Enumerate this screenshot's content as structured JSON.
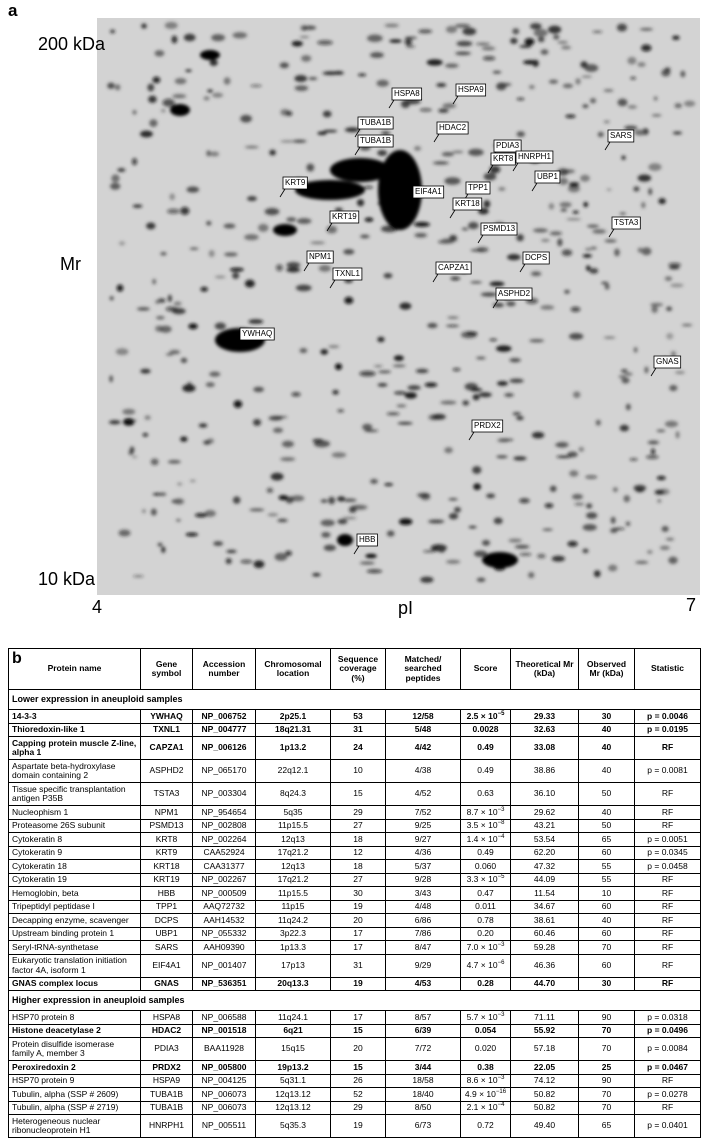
{
  "panel_a": {
    "label": "a",
    "y_top": "200 kDa",
    "y_axis": "Mr",
    "y_bottom": "10 kDa",
    "x_left": "4",
    "x_axis": "pI",
    "x_right": "7",
    "spot_labels": [
      "HSPA8",
      "HSPA9",
      "TUBA1B",
      "TUBA1B",
      "HDAC2",
      "PDIA3",
      "HNRPH1",
      "KRT8",
      "SARS",
      "TPP1",
      "UBP1",
      "KRT9",
      "EIF4A1",
      "KRT18",
      "KRT19",
      "TSTA3",
      "PSMD13",
      "NPM1",
      "DCPS",
      "TXNL1",
      "CAPZA1",
      "ASPHD2",
      "YWHAQ",
      "GNAS",
      "PRDX2",
      "HBB"
    ]
  },
  "panel_b": {
    "label": "b",
    "columns": [
      "Protein name",
      "Gene symbol",
      "Accession number",
      "Chromosomal location",
      "Sequence coverage (%)",
      "Matched/ searched peptides",
      "Score",
      "Theoretical Mr (kDa)",
      "Observed Mr (kDa)",
      "Statistic"
    ],
    "sections": [
      {
        "title": "Lower expression in aneuploid samples",
        "rows": [
          {
            "bold": true,
            "cells": [
              "14-3-3",
              "YWHAQ",
              "NP_006752",
              "2p25.1",
              "53",
              "12/58",
              {
                "text": "2.5 × 10",
                "sup": "−5"
              },
              "29.33",
              "30",
              "p = 0.0046"
            ]
          },
          {
            "bold": true,
            "cells": [
              "Thioredoxin-like 1",
              "TXNL1",
              "NP_004777",
              "18q21.31",
              "31",
              "5/48",
              "0.0028",
              "32.63",
              "40",
              "p = 0.0195"
            ]
          },
          {
            "bold": true,
            "cells": [
              "Capping protein muscle Z-line, alpha 1",
              "CAPZA1",
              "NP_006126",
              "1p13.2",
              "24",
              "4/42",
              "0.49",
              "33.08",
              "40",
              "RF"
            ]
          },
          {
            "bold": false,
            "cells": [
              "Aspartate beta-hydroxylase domain containing 2",
              "ASPHD2",
              "NP_065170",
              "22q12.1",
              "10",
              "4/38",
              "0.49",
              "38.86",
              "40",
              "p = 0.0081"
            ]
          },
          {
            "bold": false,
            "cells": [
              "Tissue specific transplantation antigen P35B",
              "TSTA3",
              "NP_003304",
              "8q24.3",
              "15",
              "4/52",
              "0.63",
              "36.10",
              "50",
              "RF"
            ]
          },
          {
            "bold": false,
            "cells": [
              "Nucleophism 1",
              "NPM1",
              "NP_954654",
              "5q35",
              "29",
              "7/52",
              {
                "text": "8.7 × 10",
                "sup": "−3"
              },
              "29.62",
              "40",
              "RF"
            ]
          },
          {
            "bold": false,
            "cells": [
              "Proteasome 26S subunit",
              "PSMD13",
              "NP_002808",
              "11p15.5",
              "27",
              "9/25",
              {
                "text": "3.5 × 10",
                "sup": "−8"
              },
              "43.21",
              "50",
              "RF"
            ]
          },
          {
            "bold": false,
            "cells": [
              "Cytokeratin 8",
              "KRT8",
              "NP_002264",
              "12q13",
              "18",
              "9/27",
              {
                "text": "1.4 × 10",
                "sup": "−4"
              },
              "53.54",
              "65",
              "p = 0.0051"
            ]
          },
          {
            "bold": false,
            "cells": [
              "Cytokeratin 9",
              "KRT9",
              "CAA52924",
              "17q21.2",
              "12",
              "4/36",
              "0.49",
              "62.20",
              "60",
              "p = 0.0345"
            ]
          },
          {
            "bold": false,
            "cells": [
              "Cytokeratin 18",
              "KRT18",
              "CAA31377",
              "12q13",
              "18",
              "5/37",
              "0.060",
              "47.32",
              "55",
              "p = 0.0458"
            ]
          },
          {
            "bold": false,
            "cells": [
              "Cytokeratin 19",
              "KRT19",
              "NP_002267",
              "17q21.2",
              "27",
              "9/28",
              {
                "text": "3.3 × 10",
                "sup": "−5"
              },
              "44.09",
              "55",
              "RF"
            ]
          },
          {
            "bold": false,
            "cells": [
              "Hemoglobin, beta",
              "HBB",
              "NP_000509",
              "11p15.5",
              "30",
              "3/43",
              "0.47",
              "11.54",
              "10",
              "RF"
            ]
          },
          {
            "bold": false,
            "cells": [
              "Tripeptidyl peptidase I",
              "TPP1",
              "AAQ72732",
              "11p15",
              "19",
              "4/48",
              "0.011",
              "34.67",
              "60",
              "RF"
            ]
          },
          {
            "bold": false,
            "cells": [
              "Decapping enzyme, scavenger",
              "DCPS",
              "AAH14532",
              "11q24.2",
              "20",
              "6/86",
              "0.78",
              "38.61",
              "40",
              "RF"
            ]
          },
          {
            "bold": false,
            "cells": [
              "Upstream binding protein 1",
              "UBP1",
              "NP_055332",
              "3p22.3",
              "17",
              "7/86",
              "0.20",
              "60.46",
              "60",
              "RF"
            ]
          },
          {
            "bold": false,
            "cells": [
              "Seryl-tRNA-synthetase",
              "SARS",
              "AAH09390",
              "1p13.3",
              "17",
              "8/47",
              {
                "text": "7.0 × 10",
                "sup": "−3"
              },
              "59.28",
              "70",
              "RF"
            ]
          },
          {
            "bold": false,
            "cells": [
              "Eukaryotic translation initiation factor 4A, isoform 1",
              "EIF4A1",
              "NP_001407",
              "17p13",
              "31",
              "9/29",
              {
                "text": "4.7 × 10",
                "sup": "−6"
              },
              "46.36",
              "60",
              "RF"
            ]
          },
          {
            "bold": true,
            "cells": [
              "GNAS complex locus",
              "GNAS",
              "NP_536351",
              "20q13.3",
              "19",
              "4/53",
              "0.28",
              "44.70",
              "30",
              "RF"
            ]
          }
        ]
      },
      {
        "title": "Higher expression in aneuploid samples",
        "rows": [
          {
            "bold": false,
            "cells": [
              "HSP70 protein 8",
              "HSPA8",
              "NP_006588",
              "11q24.1",
              "17",
              "8/57",
              {
                "text": "5.7 × 10",
                "sup": "−3"
              },
              "71.11",
              "90",
              "p = 0.0318"
            ]
          },
          {
            "bold": true,
            "cells": [
              "Histone deacetylase 2",
              "HDAC2",
              "NP_001518",
              "6q21",
              "15",
              "6/39",
              "0.054",
              "55.92",
              "70",
              "p = 0.0496"
            ]
          },
          {
            "bold": false,
            "cells": [
              "Protein disulfide isomerase family A, member 3",
              "PDIA3",
              "BAA11928",
              "15q15",
              "20",
              "7/72",
              "0.020",
              "57.18",
              "70",
              "p = 0.0084"
            ]
          },
          {
            "bold": true,
            "cells": [
              "Peroxiredoxin 2",
              "PRDX2",
              "NP_005800",
              "19p13.2",
              "15",
              "3/44",
              "0.38",
              "22.05",
              "25",
              "p = 0.0467"
            ]
          },
          {
            "bold": false,
            "cells": [
              "HSP70 protein 9",
              "HSPA9",
              "NP_004125",
              "5q31.1",
              "26",
              "18/58",
              {
                "text": "8.6 × 10",
                "sup": "−3"
              },
              "74.12",
              "90",
              "RF"
            ]
          },
          {
            "bold": false,
            "cells": [
              "Tubulin, alpha (SSP # 2609)",
              "TUBA1B",
              "NP_006073",
              "12q13.12",
              "52",
              "18/40",
              {
                "text": "4.9 × 10",
                "sup": "−16"
              },
              "50.82",
              "70",
              "p = 0.0278"
            ]
          },
          {
            "bold": false,
            "cells": [
              "Tubulin, alpha (SSP # 2719)",
              "TUBA1B",
              "NP_006073",
              "12q13.12",
              "29",
              "8/50",
              {
                "text": "2.1 × 10",
                "sup": "−4"
              },
              "50.82",
              "70",
              "RF"
            ]
          },
          {
            "bold": false,
            "cells": [
              "Heterogeneous nuclear ribonucleoprotein H1",
              "HNRPH1",
              "NP_005511",
              "5q35.3",
              "19",
              "6/73",
              "0.72",
              "49.40",
              "65",
              "p = 0.0401"
            ]
          }
        ]
      }
    ]
  }
}
